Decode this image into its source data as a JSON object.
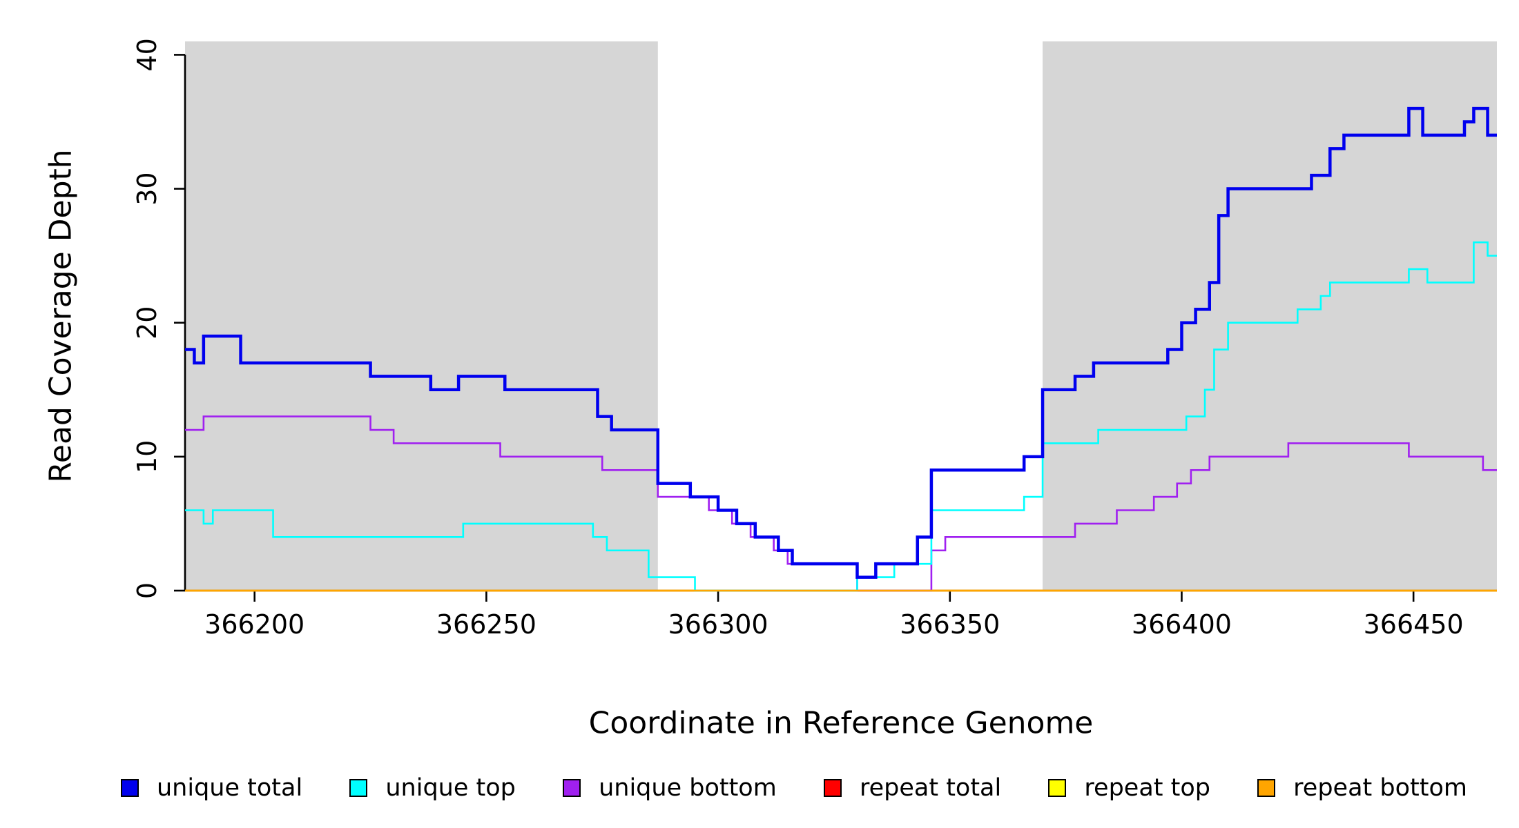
{
  "chart_data": {
    "type": "line",
    "subtype": "step",
    "title": "",
    "xlabel": "Coordinate in Reference Genome",
    "ylabel": "Read Coverage Depth",
    "xlim": [
      366185,
      366468
    ],
    "ylim": [
      0,
      41
    ],
    "xticks": [
      366200,
      366250,
      366300,
      366350,
      366400,
      366450
    ],
    "yticks": [
      0,
      10,
      20,
      30,
      40
    ],
    "grid": false,
    "background_color": "#ffffff",
    "shaded_region_color": "#d6d6d6",
    "shaded_regions": [
      {
        "x0": 366185,
        "x1": 366287
      },
      {
        "x0": 366370,
        "x1": 366468
      }
    ],
    "series": [
      {
        "name": "repeat total",
        "color": "#ff0000",
        "width": 2.6,
        "points": [
          [
            366185,
            0
          ]
        ]
      },
      {
        "name": "repeat top",
        "color": "#ffff00",
        "width": 2.6,
        "points": [
          [
            366185,
            0
          ]
        ]
      },
      {
        "name": "unique bottom",
        "color": "#a020f0",
        "width": 2.6,
        "points": [
          [
            366185,
            12
          ],
          [
            366189,
            13
          ],
          [
            366225,
            12
          ],
          [
            366230,
            11
          ],
          [
            366253,
            10
          ],
          [
            366275,
            9
          ],
          [
            366287,
            7
          ],
          [
            366298,
            6
          ],
          [
            366303,
            5
          ],
          [
            366307,
            4
          ],
          [
            366312,
            3
          ],
          [
            366315,
            2
          ],
          [
            366330,
            0
          ],
          [
            366346,
            3
          ],
          [
            366349,
            4
          ],
          [
            366377,
            5
          ],
          [
            366386,
            6
          ],
          [
            366394,
            7
          ],
          [
            366399,
            8
          ],
          [
            366402,
            9
          ],
          [
            366406,
            10
          ],
          [
            366423,
            11
          ],
          [
            366449,
            10
          ],
          [
            366465,
            9
          ]
        ]
      },
      {
        "name": "unique top",
        "color": "#00ffff",
        "width": 2.6,
        "points": [
          [
            366185,
            6
          ],
          [
            366189,
            5
          ],
          [
            366191,
            6
          ],
          [
            366204,
            4
          ],
          [
            366245,
            5
          ],
          [
            366273,
            4
          ],
          [
            366276,
            3
          ],
          [
            366285,
            1
          ],
          [
            366295,
            0
          ],
          [
            366330,
            1
          ],
          [
            366338,
            2
          ],
          [
            366346,
            6
          ],
          [
            366366,
            7
          ],
          [
            366370,
            11
          ],
          [
            366382,
            12
          ],
          [
            366401,
            13
          ],
          [
            366405,
            15
          ],
          [
            366407,
            18
          ],
          [
            366410,
            20
          ],
          [
            366425,
            21
          ],
          [
            366430,
            22
          ],
          [
            366432,
            23
          ],
          [
            366449,
            24
          ],
          [
            366453,
            23
          ],
          [
            366463,
            26
          ],
          [
            366466,
            25
          ]
        ]
      },
      {
        "name": "unique total",
        "color": "#0000ee",
        "width": 4.5,
        "points": [
          [
            366185,
            18
          ],
          [
            366187,
            17
          ],
          [
            366189,
            19
          ],
          [
            366197,
            17
          ],
          [
            366225,
            16
          ],
          [
            366238,
            15
          ],
          [
            366244,
            16
          ],
          [
            366254,
            15
          ],
          [
            366274,
            13
          ],
          [
            366277,
            12
          ],
          [
            366287,
            8
          ],
          [
            366294,
            7
          ],
          [
            366300,
            6
          ],
          [
            366304,
            5
          ],
          [
            366308,
            4
          ],
          [
            366313,
            3
          ],
          [
            366316,
            2
          ],
          [
            366330,
            1
          ],
          [
            366334,
            2
          ],
          [
            366343,
            4
          ],
          [
            366346,
            9
          ],
          [
            366366,
            10
          ],
          [
            366370,
            15
          ],
          [
            366377,
            16
          ],
          [
            366381,
            17
          ],
          [
            366397,
            18
          ],
          [
            366400,
            20
          ],
          [
            366403,
            21
          ],
          [
            366406,
            23
          ],
          [
            366408,
            28
          ],
          [
            366410,
            30
          ],
          [
            366428,
            31
          ],
          [
            366432,
            33
          ],
          [
            366435,
            34
          ],
          [
            366449,
            36
          ],
          [
            366452,
            34
          ],
          [
            366461,
            35
          ],
          [
            366463,
            36
          ],
          [
            366466,
            34
          ]
        ]
      },
      {
        "name": "repeat bottom",
        "color": "#ffa500",
        "width": 2.6,
        "points": [
          [
            366185,
            0
          ]
        ]
      }
    ],
    "legend": [
      {
        "label": "unique total",
        "color": "#0000ee"
      },
      {
        "label": "unique top",
        "color": "#00ffff"
      },
      {
        "label": "unique bottom",
        "color": "#a020f0"
      },
      {
        "label": "repeat total",
        "color": "#ff0000"
      },
      {
        "label": "repeat top",
        "color": "#ffff00"
      },
      {
        "label": "repeat bottom",
        "color": "#ffa500"
      }
    ],
    "legend_position": "bottom"
  }
}
